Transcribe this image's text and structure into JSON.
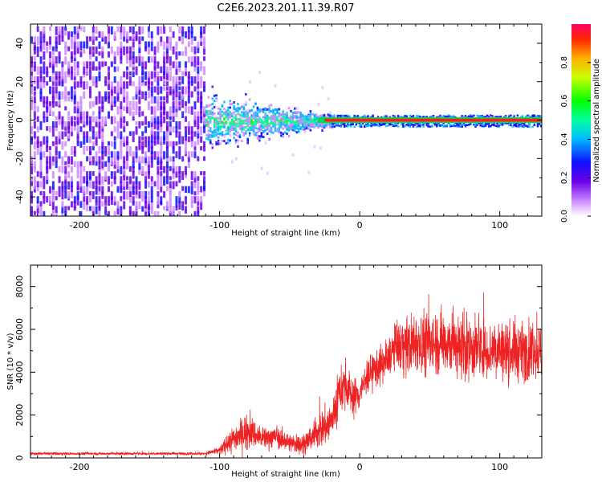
{
  "title": "C2E6.2023.201.11.39.R07",
  "chart_data": [
    {
      "type": "heatmap",
      "xlabel": "Height of straight line (km)",
      "ylabel": "Frequency (Hz)",
      "xlim": [
        -235,
        130
      ],
      "ylim": [
        -50,
        50
      ],
      "xticks": [
        -200,
        -100,
        0,
        100
      ],
      "yticks": [
        -40,
        -20,
        0,
        20,
        40
      ],
      "colorbar": {
        "label": "Normalized spectral amplitude",
        "range": [
          0,
          1
        ],
        "ticks": [
          "0.0",
          "0.2",
          "0.4",
          "0.6",
          "0.8"
        ]
      },
      "regions": [
        {
          "x_range": [
            -235,
            -110
          ],
          "description_level": "broadband noise",
          "amplitude": 0.15,
          "freq_spread": [
            -50,
            50
          ]
        },
        {
          "x_range": [
            -110,
            -20
          ],
          "description_level": "broadening signal near 0 Hz",
          "amplitude": 0.35,
          "freq_spread": [
            -20,
            15
          ]
        },
        {
          "x_range": [
            -20,
            130
          ],
          "description_level": "narrow strong line at 0 Hz",
          "amplitude": 0.95,
          "freq_spread": [
            -2,
            2
          ]
        }
      ],
      "grid": false
    },
    {
      "type": "line",
      "xlabel": "Height of straight line (km)",
      "ylabel": "SNR (10 * v/v)",
      "xlim": [
        -235,
        130
      ],
      "ylim": [
        0,
        9000
      ],
      "xticks": [
        -200,
        -100,
        0,
        100
      ],
      "yticks": [
        0,
        2000,
        4000,
        6000,
        8000
      ],
      "color": "#ee2222",
      "series": [
        {
          "x": [
            -235,
            -200,
            -150,
            -110,
            -100,
            -90,
            -80,
            -70,
            -60,
            -50,
            -40,
            -30,
            -20,
            -15,
            -10,
            -5,
            0,
            5,
            10,
            15,
            20,
            25,
            30,
            35,
            40,
            50,
            60,
            70,
            80,
            90,
            100,
            110,
            120,
            130
          ],
          "y": [
            200,
            200,
            200,
            200,
            350,
            900,
            1300,
            900,
            1000,
            700,
            600,
            1200,
            1700,
            3000,
            3500,
            2800,
            3000,
            3800,
            4100,
            4300,
            4500,
            5200,
            5300,
            5200,
            5500,
            5300,
            5500,
            5200,
            5100,
            5000,
            5000,
            4900,
            5000,
            5000
          ],
          "noise": [
            60,
            60,
            60,
            60,
            200,
            600,
            800,
            500,
            500,
            400,
            500,
            800,
            1000,
            1200,
            1000,
            900,
            800,
            800,
            800,
            900,
            800,
            1000,
            1200,
            1300,
            1500,
            1500,
            1500,
            1400,
            1400,
            1300,
            1300,
            1300,
            1300,
            1300
          ]
        }
      ],
      "grid": false
    }
  ]
}
